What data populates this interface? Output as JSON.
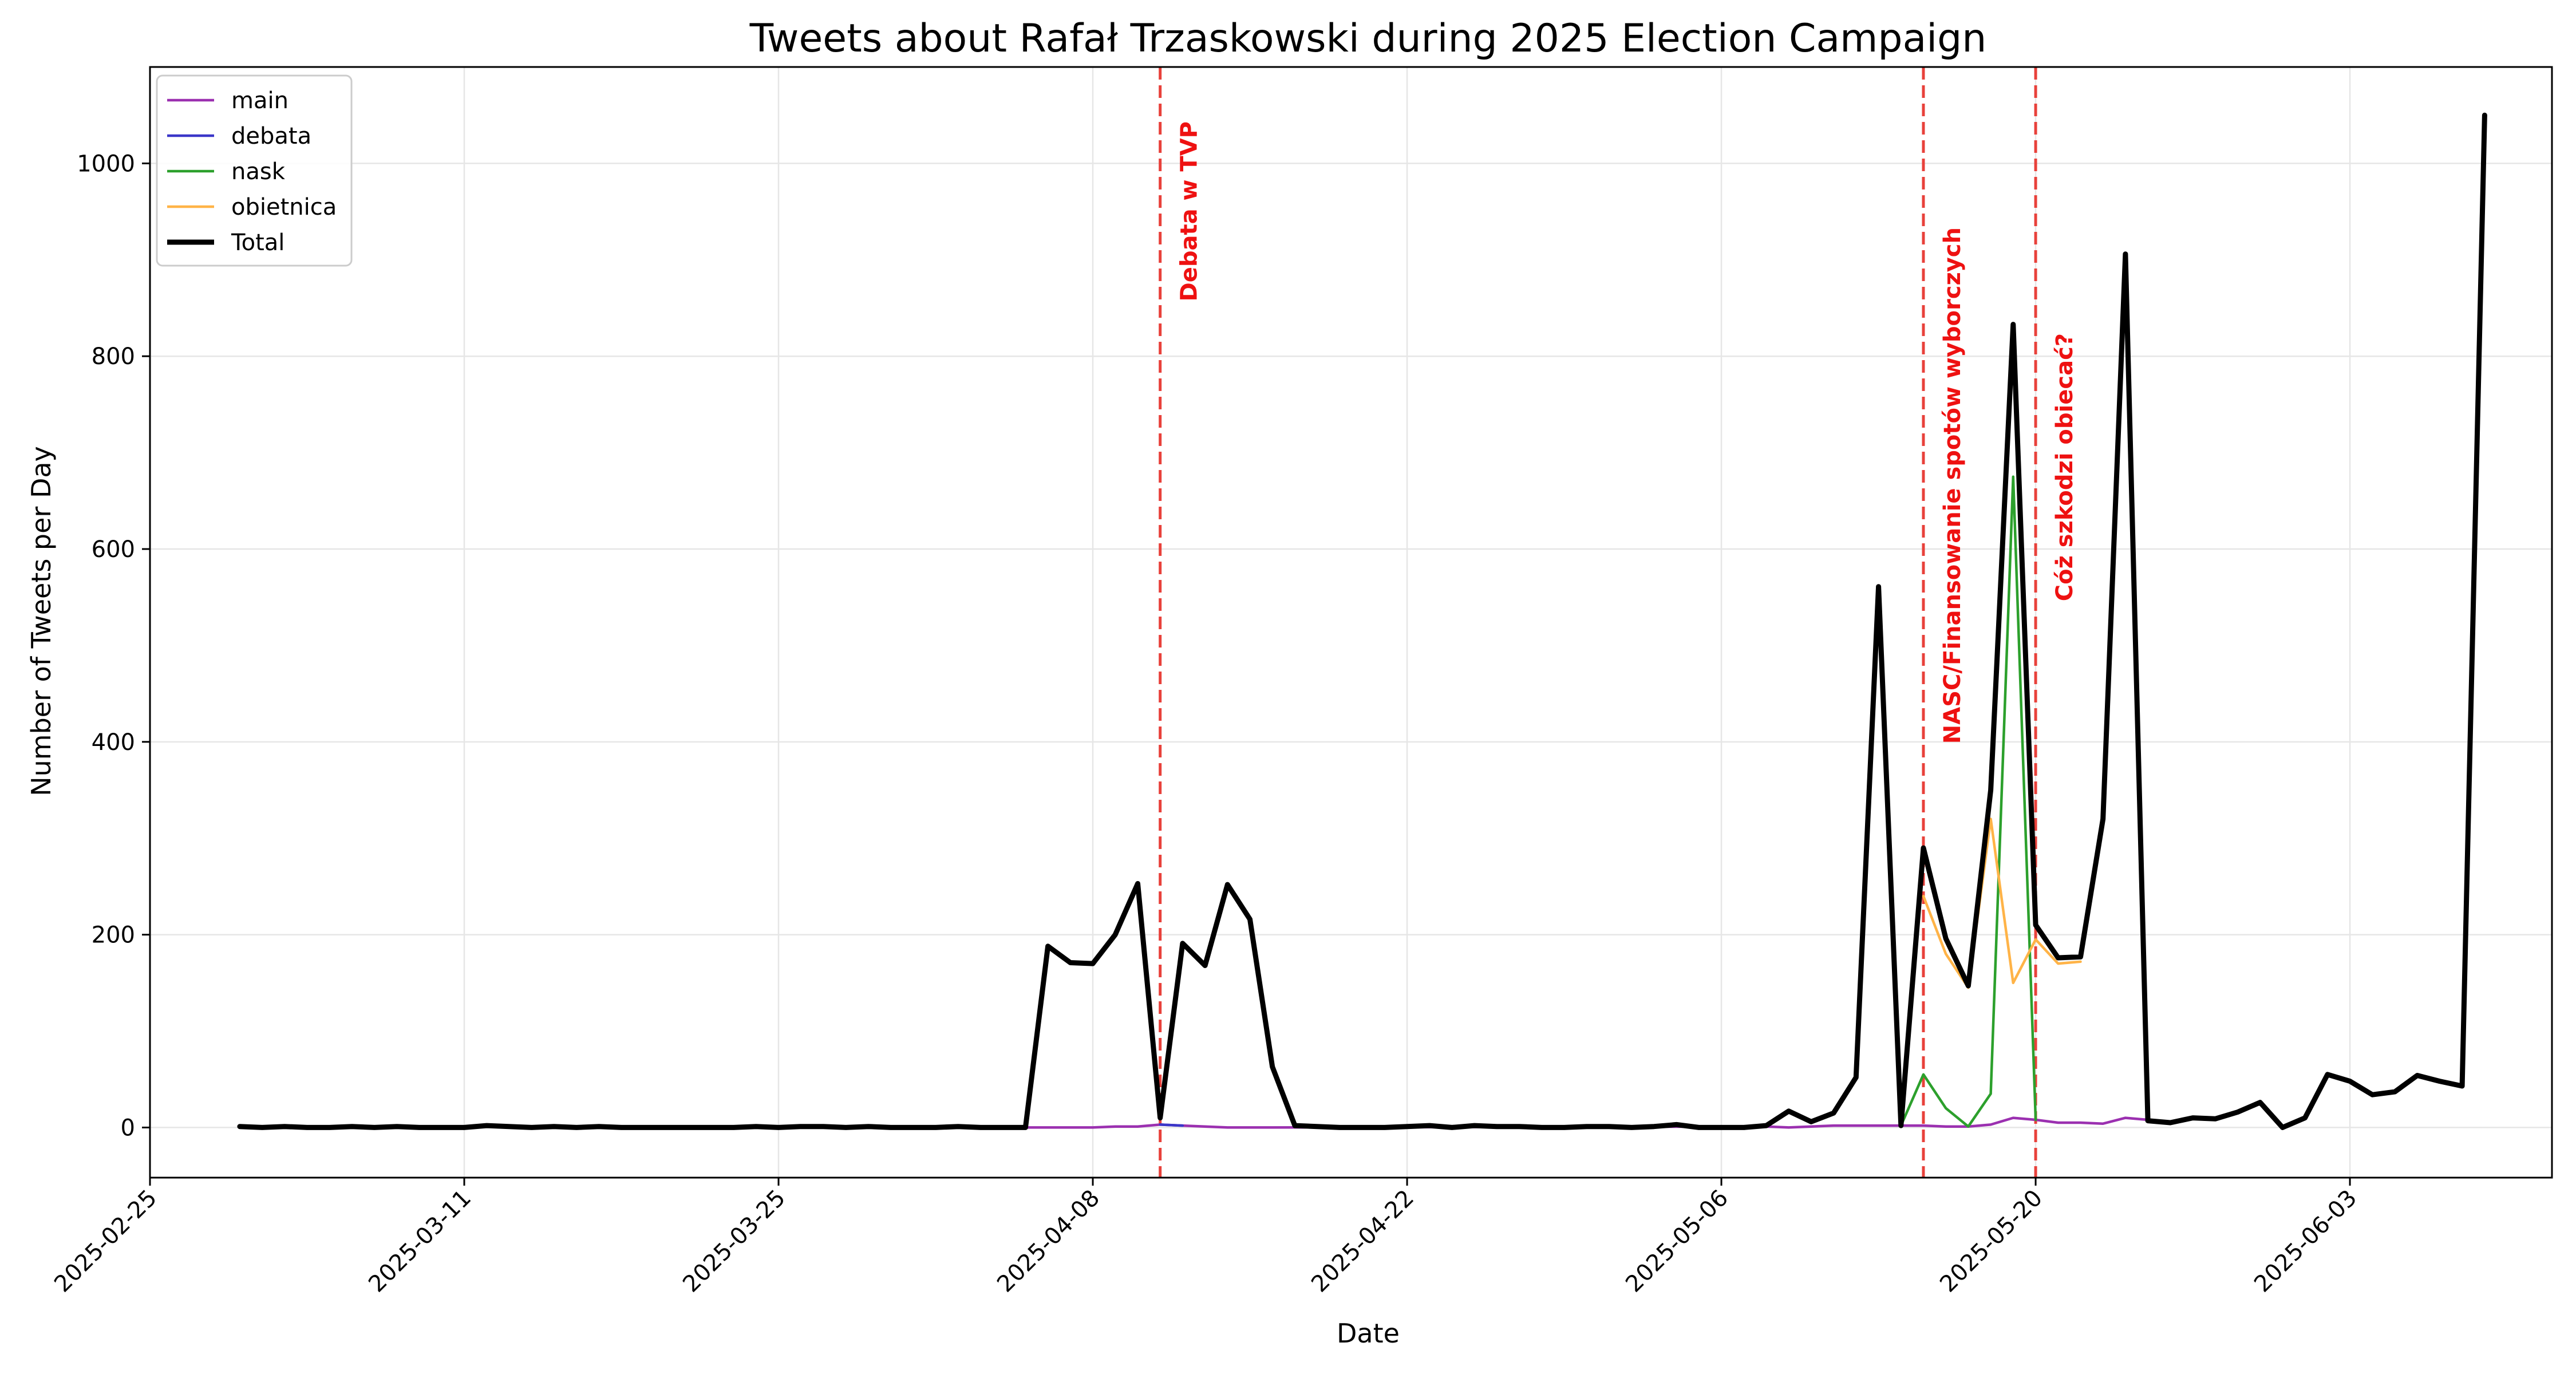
{
  "chart_data": {
    "type": "line",
    "title": "Tweets about Rafał Trzaskowski during 2025 Election Campaign",
    "xlabel": "Date",
    "ylabel": "Number of Tweets per Day",
    "x_range": [
      "2025-02-25",
      "2025-06-12"
    ],
    "ylim": [
      -52,
      1100
    ],
    "grid": true,
    "legend_position": "top-left",
    "x_ticks": [
      "2025-02-25",
      "2025-03-11",
      "2025-03-25",
      "2025-04-08",
      "2025-04-22",
      "2025-05-06",
      "2025-05-20",
      "2025-06-03"
    ],
    "y_ticks": [
      0,
      200,
      400,
      600,
      800,
      1000
    ],
    "series": [
      {
        "name": "main",
        "color": "#9b30b0",
        "points": [
          [
            "2025-04-05",
            0
          ],
          [
            "2025-04-06",
            0
          ],
          [
            "2025-04-07",
            0
          ],
          [
            "2025-04-08",
            0
          ],
          [
            "2025-04-09",
            1
          ],
          [
            "2025-04-10",
            1
          ],
          [
            "2025-04-11",
            3
          ],
          [
            "2025-04-12",
            2
          ],
          [
            "2025-04-13",
            1
          ],
          [
            "2025-04-14",
            0
          ],
          [
            "2025-04-15",
            0
          ],
          [
            "2025-04-16",
            0
          ],
          [
            "2025-05-07",
            1
          ],
          [
            "2025-05-08",
            1
          ],
          [
            "2025-05-09",
            0
          ],
          [
            "2025-05-10",
            1
          ],
          [
            "2025-05-11",
            2
          ],
          [
            "2025-05-12",
            2
          ],
          [
            "2025-05-13",
            2
          ],
          [
            "2025-05-14",
            2
          ],
          [
            "2025-05-15",
            2
          ],
          [
            "2025-05-16",
            1
          ],
          [
            "2025-05-17",
            1
          ],
          [
            "2025-05-18",
            3
          ],
          [
            "2025-05-19",
            10
          ],
          [
            "2025-05-20",
            8
          ],
          [
            "2025-05-21",
            5
          ],
          [
            "2025-05-22",
            5
          ],
          [
            "2025-05-23",
            4
          ],
          [
            "2025-05-24",
            10
          ],
          [
            "2025-05-25",
            8
          ]
        ]
      },
      {
        "name": "debata",
        "color": "#3a36c8",
        "points": [
          [
            "2025-04-11",
            3
          ],
          [
            "2025-04-12",
            2
          ]
        ]
      },
      {
        "name": "nask",
        "color": "#2ca02c",
        "points": [
          [
            "2025-05-14",
            2
          ],
          [
            "2025-05-15",
            55
          ],
          [
            "2025-05-16",
            20
          ],
          [
            "2025-05-17",
            1
          ],
          [
            "2025-05-18",
            35
          ],
          [
            "2025-05-19",
            675
          ],
          [
            "2025-05-20",
            8
          ]
        ]
      },
      {
        "name": "obietnica",
        "color": "#ffb347",
        "points": [
          [
            "2025-05-15",
            240
          ],
          [
            "2025-05-16",
            180
          ],
          [
            "2025-05-17",
            145
          ],
          [
            "2025-05-18",
            320
          ],
          [
            "2025-05-19",
            150
          ],
          [
            "2025-05-20",
            195
          ],
          [
            "2025-05-21",
            170
          ],
          [
            "2025-05-22",
            172
          ]
        ]
      },
      {
        "name": "Total",
        "color": "#000000",
        "points": [
          [
            "2025-03-01",
            1
          ],
          [
            "2025-03-02",
            0
          ],
          [
            "2025-03-03",
            1
          ],
          [
            "2025-03-04",
            0
          ],
          [
            "2025-03-05",
            0
          ],
          [
            "2025-03-06",
            1
          ],
          [
            "2025-03-07",
            0
          ],
          [
            "2025-03-08",
            1
          ],
          [
            "2025-03-09",
            0
          ],
          [
            "2025-03-10",
            0
          ],
          [
            "2025-03-11",
            0
          ],
          [
            "2025-03-12",
            2
          ],
          [
            "2025-03-13",
            1
          ],
          [
            "2025-03-14",
            0
          ],
          [
            "2025-03-15",
            1
          ],
          [
            "2025-03-16",
            0
          ],
          [
            "2025-03-17",
            1
          ],
          [
            "2025-03-18",
            0
          ],
          [
            "2025-03-19",
            0
          ],
          [
            "2025-03-20",
            0
          ],
          [
            "2025-03-21",
            0
          ],
          [
            "2025-03-22",
            0
          ],
          [
            "2025-03-23",
            0
          ],
          [
            "2025-03-24",
            1
          ],
          [
            "2025-03-25",
            0
          ],
          [
            "2025-03-26",
            1
          ],
          [
            "2025-03-27",
            1
          ],
          [
            "2025-03-28",
            0
          ],
          [
            "2025-03-29",
            1
          ],
          [
            "2025-03-30",
            0
          ],
          [
            "2025-03-31",
            0
          ],
          [
            "2025-04-01",
            0
          ],
          [
            "2025-04-02",
            1
          ],
          [
            "2025-04-03",
            0
          ],
          [
            "2025-04-04",
            0
          ],
          [
            "2025-04-05",
            0
          ],
          [
            "2025-04-06",
            188
          ],
          [
            "2025-04-07",
            171
          ],
          [
            "2025-04-08",
            170
          ],
          [
            "2025-04-09",
            200
          ],
          [
            "2025-04-10",
            253
          ],
          [
            "2025-04-11",
            10
          ],
          [
            "2025-04-12",
            191
          ],
          [
            "2025-04-13",
            168
          ],
          [
            "2025-04-14",
            252
          ],
          [
            "2025-04-15",
            216
          ],
          [
            "2025-04-16",
            63
          ],
          [
            "2025-04-17",
            2
          ],
          [
            "2025-04-18",
            1
          ],
          [
            "2025-04-19",
            0
          ],
          [
            "2025-04-20",
            0
          ],
          [
            "2025-04-21",
            0
          ],
          [
            "2025-04-22",
            1
          ],
          [
            "2025-04-23",
            2
          ],
          [
            "2025-04-24",
            0
          ],
          [
            "2025-04-25",
            2
          ],
          [
            "2025-04-26",
            1
          ],
          [
            "2025-04-27",
            1
          ],
          [
            "2025-04-28",
            0
          ],
          [
            "2025-04-29",
            0
          ],
          [
            "2025-04-30",
            1
          ],
          [
            "2025-05-01",
            1
          ],
          [
            "2025-05-02",
            0
          ],
          [
            "2025-05-03",
            1
          ],
          [
            "2025-05-04",
            3
          ],
          [
            "2025-05-05",
            0
          ],
          [
            "2025-05-06",
            0
          ],
          [
            "2025-05-07",
            0
          ],
          [
            "2025-05-08",
            2
          ],
          [
            "2025-05-09",
            17
          ],
          [
            "2025-05-10",
            6
          ],
          [
            "2025-05-11",
            15
          ],
          [
            "2025-05-12",
            52
          ],
          [
            "2025-05-13",
            561
          ],
          [
            "2025-05-14",
            2
          ],
          [
            "2025-05-15",
            290
          ],
          [
            "2025-05-16",
            196
          ],
          [
            "2025-05-17",
            147
          ],
          [
            "2025-05-18",
            350
          ],
          [
            "2025-05-19",
            833
          ],
          [
            "2025-05-20",
            210
          ],
          [
            "2025-05-21",
            176
          ],
          [
            "2025-05-22",
            177
          ],
          [
            "2025-05-23",
            320
          ],
          [
            "2025-05-24",
            906
          ],
          [
            "2025-05-25",
            7
          ],
          [
            "2025-05-26",
            5
          ],
          [
            "2025-05-27",
            10
          ],
          [
            "2025-05-28",
            9
          ],
          [
            "2025-05-29",
            16
          ],
          [
            "2025-05-30",
            26
          ],
          [
            "2025-05-31",
            0
          ],
          [
            "2025-06-01",
            10
          ],
          [
            "2025-06-02",
            55
          ],
          [
            "2025-06-03",
            48
          ],
          [
            "2025-06-04",
            34
          ],
          [
            "2025-06-05",
            37
          ],
          [
            "2025-06-06",
            54
          ],
          [
            "2025-06-07",
            48
          ],
          [
            "2025-06-08",
            43
          ],
          [
            "2025-06-09",
            1050
          ]
        ]
      }
    ],
    "annotations": [
      {
        "date": "2025-04-11",
        "label": "Debata w TVP"
      },
      {
        "date": "2025-05-15",
        "label": "NASC/Finansowanie spotów wyborczych"
      },
      {
        "date": "2025-05-20",
        "label": "Cóż szkodzi obiecać?"
      }
    ]
  }
}
